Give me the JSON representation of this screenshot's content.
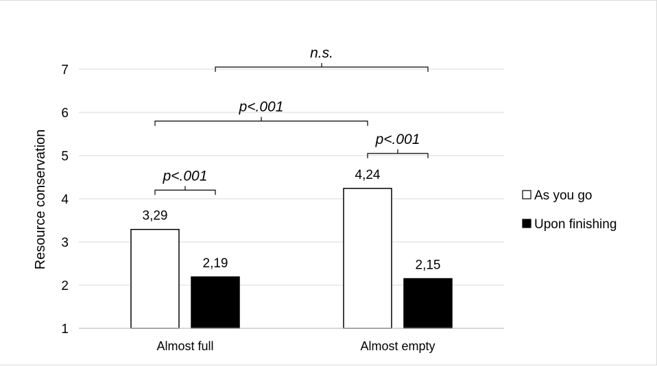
{
  "chart_data": {
    "type": "bar",
    "title": "",
    "xlabel": "",
    "ylabel": "Resource conservation",
    "ylim": [
      1,
      7
    ],
    "yticks": [
      "1",
      "2",
      "3",
      "4",
      "5",
      "6",
      "7"
    ],
    "categories": [
      "Almost full",
      "Almost empty"
    ],
    "series": [
      {
        "name": "As you go",
        "values": [
          3.29,
          4.24
        ],
        "labels": [
          "3,29",
          "4,24"
        ],
        "color": "#ffffff"
      },
      {
        "name": "Upon finishing",
        "values": [
          2.19,
          2.15
        ],
        "labels": [
          "2,19",
          "2,15"
        ],
        "color": "#000000"
      }
    ],
    "grid": true,
    "legend": "right",
    "annotations": [
      {
        "text": "p<.001",
        "from": "Almost full · As you go",
        "to": "Almost full · Upon finishing",
        "level": 4.2
      },
      {
        "text": "p<.001",
        "from": "Almost empty · As you go",
        "to": "Almost empty · Upon finishing",
        "level": 5.05
      },
      {
        "text": "p<.001",
        "from": "Almost full · As you go",
        "to": "Almost empty · As you go",
        "level": 5.8
      },
      {
        "text": "n.s.",
        "from": "Almost full · Upon finishing",
        "to": "Almost empty · Upon finishing",
        "level": 7.05
      }
    ]
  }
}
